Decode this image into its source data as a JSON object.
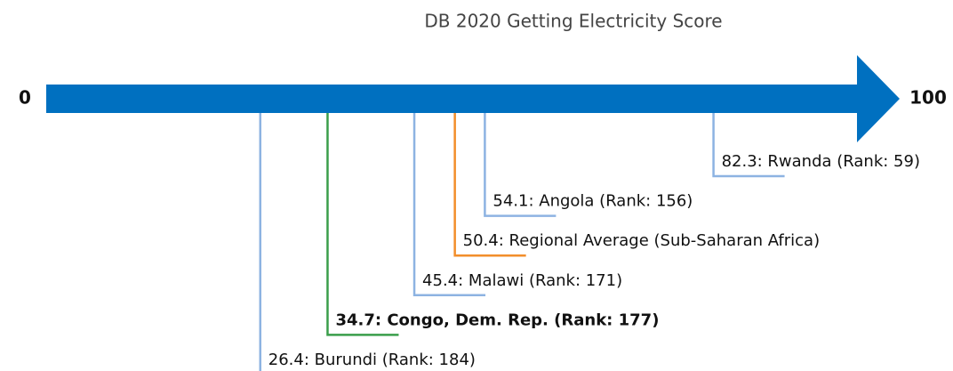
{
  "chart_data": {
    "type": "number-line",
    "title": "DB 2020 Getting Electricity Score",
    "xlim": [
      0,
      100
    ],
    "xticks": [
      0,
      100
    ],
    "axis_color": "#0070c0",
    "values": [
      82.3,
      54.1,
      50.4,
      45.4,
      34.7,
      26.4
    ],
    "value_labels": [
      "82.3: Rwanda (Rank: 59)",
      "54.1: Angola (Rank: 156)",
      "50.4: Regional Average (Sub-Saharan Africa)",
      "45.4: Malawi (Rank: 171)",
      "34.7: Congo, Dem. Rep. (Rank: 177)",
      "26.4: Burundi (Rank: 184)"
    ],
    "colors": [
      "#8db3e2",
      "#8db3e2",
      "#f28e2b",
      "#8db3e2",
      "#3a9e4a",
      "#8db3e2"
    ],
    "bold": [
      false,
      false,
      false,
      false,
      true,
      false
    ]
  }
}
